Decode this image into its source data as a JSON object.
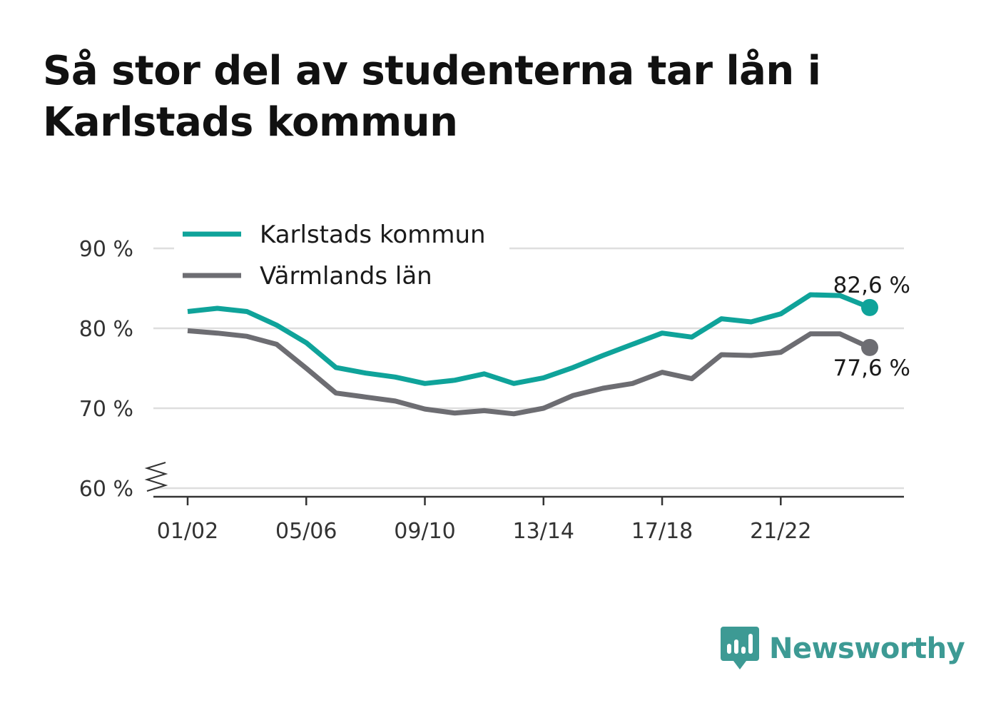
{
  "title": "Så stor del av studenterna tar lån i Karlstads kommun",
  "brand": {
    "name": "Newsworthy",
    "color": "#3d9a94",
    "icon": "newsworthy-logo-icon"
  },
  "chart_data": {
    "type": "line",
    "title": "Så stor del av studenterna tar lån i Karlstads kommun",
    "xlabel": "",
    "ylabel": "",
    "ylim": [
      60,
      90
    ],
    "y_ticks": [
      60,
      70,
      80,
      90
    ],
    "y_tick_labels": [
      "60 %",
      "70 %",
      "80 %",
      "90 %"
    ],
    "y_axis_break": true,
    "x_tick_labels": [
      "01/02",
      "05/06",
      "09/10",
      "13/14",
      "17/18",
      "21/22"
    ],
    "x_tick_indices": [
      0,
      4,
      8,
      12,
      16,
      20
    ],
    "grid": true,
    "legend_position": "top-left",
    "series": [
      {
        "name": "Karlstads kommun",
        "color": "#0fa39a",
        "values": [
          82.1,
          82.5,
          82.1,
          80.4,
          78.2,
          75.1,
          74.4,
          73.9,
          73.1,
          73.5,
          74.3,
          73.1,
          73.8,
          75.1,
          76.6,
          78.0,
          79.4,
          78.9,
          81.2,
          80.8,
          81.8,
          84.2,
          84.1,
          82.6
        ],
        "end_label": "82,6 %"
      },
      {
        "name": "Värmlands län",
        "color": "#6d6d72",
        "values": [
          79.7,
          79.4,
          79.0,
          78.0,
          75.0,
          71.9,
          71.4,
          70.9,
          69.9,
          69.4,
          69.7,
          69.3,
          70.0,
          71.6,
          72.5,
          73.1,
          74.5,
          73.7,
          76.7,
          76.6,
          77.0,
          79.3,
          79.3,
          77.6
        ],
        "end_label": "77,6 %"
      }
    ]
  }
}
